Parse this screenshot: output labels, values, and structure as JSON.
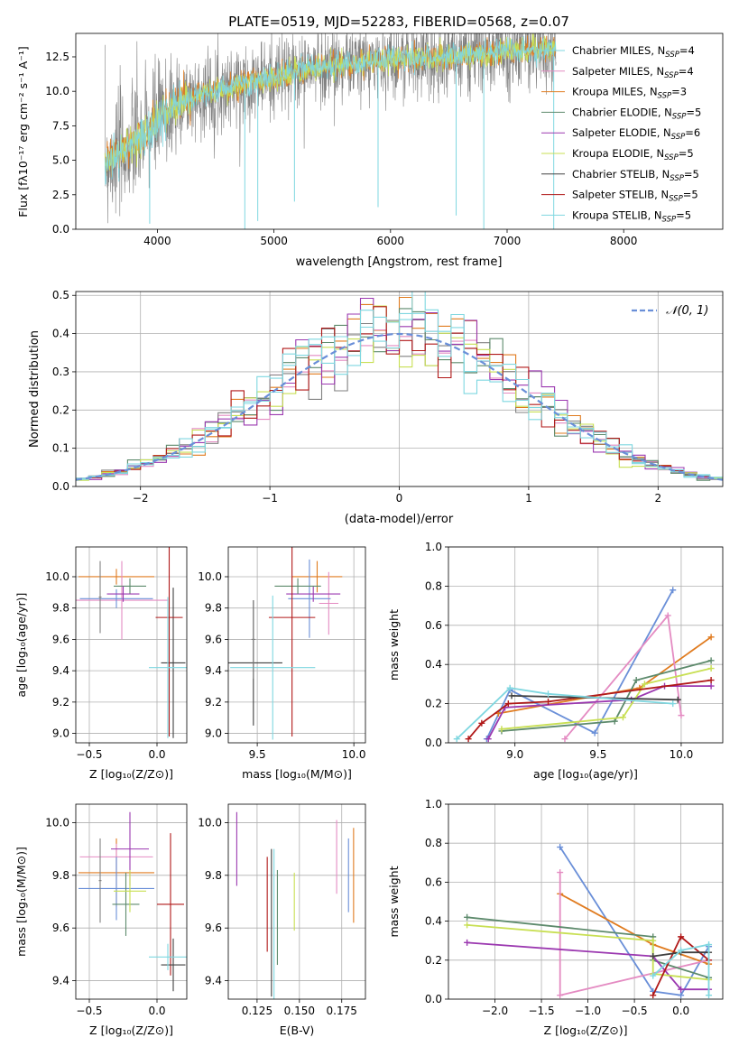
{
  "colors": {
    "mbl": "#6a8fd8",
    "org": "#e07b1f",
    "pnk": "#e48bc2",
    "gry": "#808080",
    "sgr": "#5d8a6c",
    "vio": "#9b38b0",
    "ylg": "#c8df53",
    "dkr": "#b01818",
    "cyn": "#7fd7e0",
    "dk": "#404040"
  },
  "chart_data": [
    {
      "type": "line",
      "title": "PLATE=0519, MJD=52283, FIBERID=0568, z=0.07",
      "xlabel": "wavelength [Angstrom, rest frame]",
      "ylabel": "Flux [fλ10⁻¹⁷ erg cm⁻² s⁻¹ A⁻¹]",
      "xlim": [
        3300,
        8850
      ],
      "ylim": [
        0,
        14.2
      ],
      "xticks": [
        "4000",
        "5000",
        "6000",
        "7000",
        "8000"
      ],
      "yticks": [
        "0.0",
        "2.5",
        "5.0",
        "7.5",
        "10.0",
        "12.5"
      ],
      "legend": "upper-right",
      "legend_entries": [
        {
          "label": "Chabrier MILES, N",
          "sub": "SSP",
          "suffix": "=4",
          "color": "#7fd7e0"
        },
        {
          "label": "Salpeter MILES, N",
          "sub": "SSP",
          "suffix": "=4",
          "color": "#e48bc2"
        },
        {
          "label": "Kroupa MILES, N",
          "sub": "SSP",
          "suffix": "=3",
          "color": "#e07b1f"
        },
        {
          "label": "Chabrier ELODIE, N",
          "sub": "SSP",
          "suffix": "=5",
          "color": "#5d8a6c"
        },
        {
          "label": "Salpeter ELODIE, N",
          "sub": "SSP",
          "suffix": "=6",
          "color": "#9b38b0"
        },
        {
          "label": "Kroupa ELODIE, N",
          "sub": "SSP",
          "suffix": "=5",
          "color": "#c8df53"
        },
        {
          "label": "Chabrier STELIB, N",
          "sub": "SSP",
          "suffix": "=5",
          "color": "#404040"
        },
        {
          "label": "Salpeter STELIB, N",
          "sub": "SSP",
          "suffix": "=5",
          "color": "#b01818"
        },
        {
          "label": "Kroupa STELIB, N",
          "sub": "SSP",
          "suffix": "=5",
          "color": "#7fd7e0"
        }
      ],
      "continuum": [
        [
          3550,
          4.8
        ],
        [
          3700,
          5.6
        ],
        [
          3850,
          6.5
        ],
        [
          3950,
          7.3
        ],
        [
          4050,
          8.3
        ],
        [
          4200,
          9.3
        ],
        [
          4400,
          9.8
        ],
        [
          4600,
          10.3
        ],
        [
          4800,
          10.7
        ],
        [
          5000,
          11.0
        ],
        [
          5200,
          11.4
        ],
        [
          5400,
          11.8
        ],
        [
          5600,
          12.0
        ],
        [
          5800,
          12.1
        ],
        [
          6000,
          12.3
        ],
        [
          6200,
          12.4
        ],
        [
          6400,
          12.4
        ],
        [
          6600,
          12.6
        ],
        [
          6800,
          12.7
        ],
        [
          7000,
          12.9
        ],
        [
          7200,
          13.0
        ],
        [
          7400,
          13.1
        ]
      ],
      "absorption": [
        [
          3934,
          0.4
        ],
        [
          4861,
          0.6
        ],
        [
          4750,
          0
        ],
        [
          5176,
          2.0
        ],
        [
          5893,
          1.6
        ],
        [
          6563,
          1.0
        ],
        [
          6800,
          0
        ],
        [
          7400,
          0
        ]
      ]
    },
    {
      "type": "bar",
      "xlabel": "(data-model)/error",
      "ylabel": "Normed distribution",
      "xlim": [
        -2.5,
        2.5
      ],
      "ylim": [
        0,
        0.51
      ],
      "xticks": [
        "−2",
        "−1",
        "0",
        "1",
        "2"
      ],
      "yticks": [
        "0.0",
        "0.1",
        "0.2",
        "0.3",
        "0.4",
        "0.5"
      ],
      "legend": "upper-right",
      "legend_entry": "𝒩(0, 1)",
      "bin_width": 0.1
    },
    {
      "type": "scatter",
      "xlabel": "Z [log₁₀(Z/Z⊙)]",
      "ylabel": "age  [log₁₀(age/yr)]",
      "xlim": [
        -0.6,
        0.22
      ],
      "ylim": [
        8.94,
        10.19
      ],
      "xticks": [
        "−0.5",
        "0.0"
      ],
      "yticks": [
        "9.0",
        "9.2",
        "9.4",
        "9.6",
        "9.8",
        "10.0"
      ],
      "points": [
        {
          "x": -0.3,
          "y": 10.0,
          "dx": 0.28,
          "dy": 0.05,
          "color": "#e07b1f"
        },
        {
          "x": -0.26,
          "y": 9.85,
          "dx": 0.34,
          "dy": 0.25,
          "color": "#e48bc2"
        },
        {
          "x": -0.3,
          "y": 9.86,
          "dx": 0.27,
          "dy": 0.06,
          "color": "#6a8fd8"
        },
        {
          "x": -0.42,
          "y": 9.87,
          "dx": 0.01,
          "dy": 0.23,
          "color": "#808080"
        },
        {
          "x": -0.2,
          "y": 9.94,
          "dx": 0.12,
          "dy": 0.05,
          "color": "#5d8a6c"
        },
        {
          "x": -0.25,
          "y": 9.89,
          "dx": 0.12,
          "dy": 0.05,
          "color": "#9b38b0"
        },
        {
          "x": 0.12,
          "y": 9.45,
          "dx": 0.09,
          "dy": 0.48,
          "color": "#404040"
        },
        {
          "x": 0.09,
          "y": 9.74,
          "dx": 0.1,
          "dy": 0.76,
          "color": "#b01818"
        },
        {
          "x": 0.08,
          "y": 9.42,
          "dx": 0.14,
          "dy": 0.45,
          "color": "#7fd7e0"
        }
      ]
    },
    {
      "type": "scatter",
      "xlabel": "mass [log₁₀(M/M⊙)]",
      "ylabel": "",
      "xlim": [
        9.35,
        10.06
      ],
      "ylim": [
        8.94,
        10.19
      ],
      "xticks": [
        "9.5",
        "10.0"
      ],
      "yticks": [
        "9.0",
        "9.2",
        "9.4",
        "9.6",
        "9.8",
        "10.0"
      ],
      "points": [
        {
          "x": 9.81,
          "y": 10.0,
          "dx": 0.13,
          "dy": 0.1,
          "color": "#e07b1f"
        },
        {
          "x": 9.87,
          "y": 9.83,
          "dx": 0.05,
          "dy": 0.2,
          "color": "#e48bc2"
        },
        {
          "x": 9.77,
          "y": 9.86,
          "dx": 0.11,
          "dy": 0.25,
          "color": "#6a8fd8"
        },
        {
          "x": 9.79,
          "y": 9.89,
          "dx": 0.14,
          "dy": 0.05,
          "color": "#9b38b0"
        },
        {
          "x": 9.71,
          "y": 9.94,
          "dx": 0.12,
          "dy": 0.05,
          "color": "#5d8a6c"
        },
        {
          "x": 9.68,
          "y": 9.74,
          "dx": 0.12,
          "dy": 0.76,
          "color": "#b01818"
        },
        {
          "x": 9.48,
          "y": 9.45,
          "dx": 0.15,
          "dy": 0.4,
          "color": "#404040"
        },
        {
          "x": 9.58,
          "y": 9.42,
          "dx": 0.22,
          "dy": 0.46,
          "color": "#7fd7e0"
        },
        {
          "x": 9.48,
          "y": 9.6,
          "dx": 0.01,
          "dy": 0.25,
          "color": "#808080"
        }
      ]
    },
    {
      "type": "line",
      "xlabel": "age  [log₁₀(age/yr)]",
      "ylabel": "mass weight",
      "xlim": [
        8.6,
        10.25
      ],
      "ylim": [
        0,
        1
      ],
      "xticks": [
        "9.0",
        "9.5",
        "10.0"
      ],
      "yticks": [
        "0.0",
        "0.2",
        "0.4",
        "0.6",
        "0.8",
        "1.0"
      ],
      "series": [
        {
          "color": "#6a8fd8",
          "points": [
            [
              8.83,
              0.02
            ],
            [
              8.97,
              0.27
            ],
            [
              9.48,
              0.05
            ],
            [
              9.95,
              0.78
            ]
          ]
        },
        {
          "color": "#e07b1f",
          "points": [
            [
              8.9,
              0.15
            ],
            [
              9.75,
              0.28
            ],
            [
              10.18,
              0.54
            ]
          ]
        },
        {
          "color": "#e48bc2",
          "points": [
            [
              9.3,
              0.02
            ],
            [
              9.92,
              0.65
            ],
            [
              10.0,
              0.14
            ]
          ]
        },
        {
          "color": "#5d8a6c",
          "points": [
            [
              8.92,
              0.06
            ],
            [
              9.6,
              0.11
            ],
            [
              9.73,
              0.32
            ],
            [
              10.18,
              0.42
            ]
          ]
        },
        {
          "color": "#9b38b0",
          "points": [
            [
              8.84,
              0.02
            ],
            [
              8.94,
              0.18
            ],
            [
              9.7,
              0.22
            ],
            [
              9.9,
              0.29
            ],
            [
              10.18,
              0.29
            ]
          ]
        },
        {
          "color": "#c8df53",
          "points": [
            [
              8.92,
              0.07
            ],
            [
              9.65,
              0.13
            ],
            [
              9.78,
              0.3
            ],
            [
              10.18,
              0.38
            ]
          ]
        },
        {
          "color": "#b01818",
          "points": [
            [
              8.72,
              0.02
            ],
            [
              8.8,
              0.1
            ],
            [
              8.96,
              0.2
            ],
            [
              9.2,
              0.21
            ],
            [
              10.18,
              0.32
            ]
          ]
        },
        {
          "color": "#404040",
          "points": [
            [
              8.98,
              0.24
            ],
            [
              9.98,
              0.22
            ]
          ]
        },
        {
          "color": "#7fd7e0",
          "points": [
            [
              8.65,
              0.02
            ],
            [
              8.97,
              0.28
            ],
            [
              9.2,
              0.25
            ],
            [
              9.95,
              0.2
            ]
          ]
        }
      ]
    },
    {
      "type": "scatter",
      "xlabel": "Z [log₁₀(Z/Z⊙)]",
      "ylabel": "mass [log₁₀(M/M⊙)]",
      "xlim": [
        -0.6,
        0.22
      ],
      "ylim": [
        9.33,
        10.07
      ],
      "xticks": [
        "−0.5",
        "0.0"
      ],
      "yticks": [
        "9.4",
        "9.6",
        "9.8",
        "10.0"
      ],
      "points": [
        {
          "x": -0.3,
          "y": 9.81,
          "dx": 0.28,
          "dy": 0.13,
          "color": "#e07b1f"
        },
        {
          "x": -0.3,
          "y": 9.87,
          "dx": 0.27,
          "dy": 0.05,
          "color": "#e48bc2"
        },
        {
          "x": -0.3,
          "y": 9.75,
          "dx": 0.28,
          "dy": 0.12,
          "color": "#6a8fd8"
        },
        {
          "x": -0.42,
          "y": 9.78,
          "dx": 0.01,
          "dy": 0.16,
          "color": "#808080"
        },
        {
          "x": -0.23,
          "y": 9.69,
          "dx": 0.1,
          "dy": 0.12,
          "color": "#5d8a6c"
        },
        {
          "x": -0.2,
          "y": 9.9,
          "dx": 0.14,
          "dy": 0.14,
          "color": "#9b38b0"
        },
        {
          "x": -0.2,
          "y": 9.74,
          "dx": 0.12,
          "dy": 0.08,
          "color": "#c8df53"
        },
        {
          "x": 0.1,
          "y": 9.69,
          "dx": 0.1,
          "dy": 0.27,
          "color": "#b01818"
        },
        {
          "x": 0.12,
          "y": 9.46,
          "dx": 0.09,
          "dy": 0.1,
          "color": "#404040"
        },
        {
          "x": 0.08,
          "y": 9.49,
          "dx": 0.14,
          "dy": 0.05,
          "color": "#7fd7e0"
        }
      ]
    },
    {
      "type": "scatter",
      "xlabel": "E(B-V)",
      "ylabel": "",
      "xlim": [
        0.108,
        0.189
      ],
      "ylim": [
        9.33,
        10.07
      ],
      "xticks": [
        "0.125",
        "0.150",
        "0.175"
      ],
      "yticks": [
        "9.4",
        "9.6",
        "9.8",
        "10.0"
      ],
      "points": [
        {
          "x": 0.113,
          "y": 9.9,
          "dx": 0,
          "dy": 0.14,
          "color": "#9b38b0"
        },
        {
          "x": 0.131,
          "y": 9.69,
          "dx": 0,
          "dy": 0.18,
          "color": "#b01818"
        },
        {
          "x": 0.1335,
          "y": 9.62,
          "dx": 0,
          "dy": 0.28,
          "color": "#404040"
        },
        {
          "x": 0.135,
          "y": 9.6,
          "dx": 0,
          "dy": 0.3,
          "color": "#7fd7e0"
        },
        {
          "x": 0.137,
          "y": 9.64,
          "dx": 0,
          "dy": 0.18,
          "color": "#5d8a6c"
        },
        {
          "x": 0.147,
          "y": 9.7,
          "dx": 0,
          "dy": 0.11,
          "color": "#c8df53"
        },
        {
          "x": 0.172,
          "y": 9.87,
          "dx": 0,
          "dy": 0.14,
          "color": "#e48bc2"
        },
        {
          "x": 0.179,
          "y": 9.8,
          "dx": 0,
          "dy": 0.14,
          "color": "#6a8fd8"
        },
        {
          "x": 0.182,
          "y": 9.8,
          "dx": 0,
          "dy": 0.18,
          "color": "#e07b1f"
        }
      ]
    },
    {
      "type": "line",
      "xlabel": "Z [log₁₀(Z/Z⊙)]",
      "ylabel": "mass weight",
      "xlim": [
        -2.5,
        0.45
      ],
      "ylim": [
        0,
        1
      ],
      "xticks": [
        "−2.0",
        "−1.5",
        "−1.0",
        "−0.5",
        "0.0"
      ],
      "yticks": [
        "0.0",
        "0.2",
        "0.4",
        "0.6",
        "0.8",
        "1.0"
      ],
      "series": [
        {
          "color": "#6a8fd8",
          "points": [
            [
              -1.3,
              0.78
            ],
            [
              -0.3,
              0.04
            ],
            [
              0.0,
              0.02
            ],
            [
              0.3,
              0.27
            ]
          ]
        },
        {
          "color": "#e07b1f",
          "points": [
            [
              -1.3,
              0.54
            ],
            [
              -0.3,
              0.28
            ],
            [
              0.3,
              0.18
            ]
          ]
        },
        {
          "color": "#e48bc2",
          "points": [
            [
              -1.3,
              0.65
            ],
            [
              -1.3,
              0.02
            ],
            [
              0.3,
              0.2
            ]
          ]
        },
        {
          "color": "#5d8a6c",
          "points": [
            [
              -2.3,
              0.42
            ],
            [
              -0.3,
              0.32
            ],
            [
              -0.3,
              0.2
            ],
            [
              0.3,
              0.11
            ]
          ]
        },
        {
          "color": "#9b38b0",
          "points": [
            [
              -2.3,
              0.29
            ],
            [
              -0.3,
              0.22
            ],
            [
              0.0,
              0.05
            ],
            [
              0.3,
              0.05
            ]
          ]
        },
        {
          "color": "#c8df53",
          "points": [
            [
              -2.3,
              0.38
            ],
            [
              -0.3,
              0.3
            ],
            [
              -0.3,
              0.13
            ],
            [
              0.3,
              0.1
            ]
          ]
        },
        {
          "color": "#b01818",
          "points": [
            [
              -0.3,
              0.02
            ],
            [
              0.0,
              0.32
            ],
            [
              0.3,
              0.2
            ]
          ]
        },
        {
          "color": "#404040",
          "points": [
            [
              -0.3,
              0.22
            ],
            [
              0.0,
              0.24
            ],
            [
              0.3,
              0.24
            ]
          ]
        },
        {
          "color": "#7fd7e0",
          "points": [
            [
              -0.3,
              0.12
            ],
            [
              0.0,
              0.25
            ],
            [
              0.3,
              0.28
            ],
            [
              0.3,
              0.02
            ]
          ]
        }
      ]
    }
  ]
}
